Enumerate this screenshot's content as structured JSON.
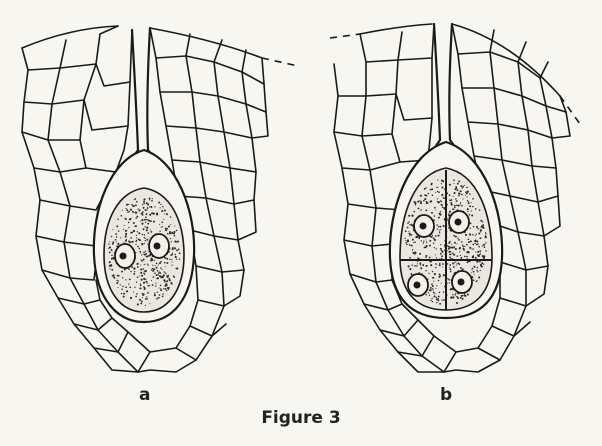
{
  "panels": [
    {
      "label": "a",
      "nuclei": 2
    },
    {
      "label": "b",
      "nuclei": 4
    }
  ],
  "caption": "Figure 3"
}
